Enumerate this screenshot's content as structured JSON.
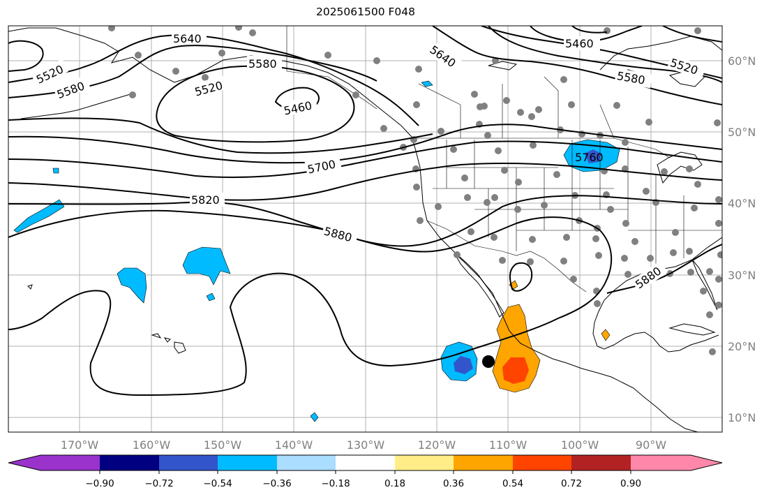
{
  "title": "2025061500 F048",
  "map": {
    "longitude_labels": [
      "170°W",
      "160°W",
      "150°W",
      "140°W",
      "130°W",
      "120°W",
      "110°W",
      "100°W",
      "90°W"
    ],
    "latitude_labels": [
      "60°N",
      "50°N",
      "40°N",
      "30°N",
      "20°N",
      "10°N"
    ],
    "contour_labels": [
      "5640",
      "5520",
      "5580",
      "5580",
      "5520",
      "5460",
      "5700",
      "5820",
      "5880",
      "5640",
      "5460",
      "5520",
      "5580",
      "5760",
      "5880"
    ],
    "station_color": "#808080",
    "center_marker_color": "#000000"
  },
  "colorbar": {
    "ticks": [
      "−0.90",
      "−0.72",
      "−0.54",
      "−0.36",
      "−0.18",
      "0.18",
      "0.36",
      "0.54",
      "0.72",
      "0.90"
    ],
    "colors": [
      "#9933cc",
      "#000080",
      "#3355cc",
      "#00bbff",
      "#aaddff",
      "#ffffff",
      "#ffee88",
      "#ffa500",
      "#ff4400",
      "#b22222",
      "#ff88aa"
    ]
  }
}
